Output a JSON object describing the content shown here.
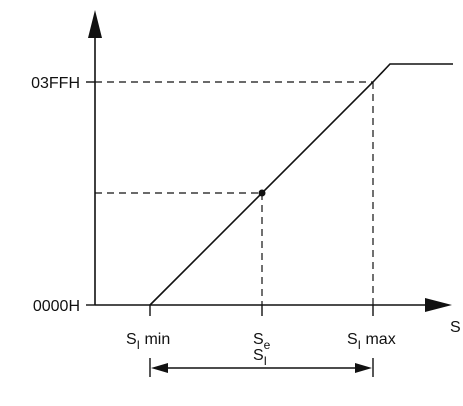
{
  "diagram": {
    "y_axis_labels": {
      "top": "03FFH",
      "bottom": "0000H"
    },
    "x_axis_label": "S",
    "x_ticks": {
      "min": {
        "base": "S",
        "sub": "I",
        "suffix": " min"
      },
      "e": {
        "base": "S",
        "sub": "e",
        "suffix": ""
      },
      "max": {
        "base": "S",
        "sub": "I",
        "suffix": " max"
      }
    },
    "range_label": {
      "base": "S",
      "sub": "I"
    }
  }
}
